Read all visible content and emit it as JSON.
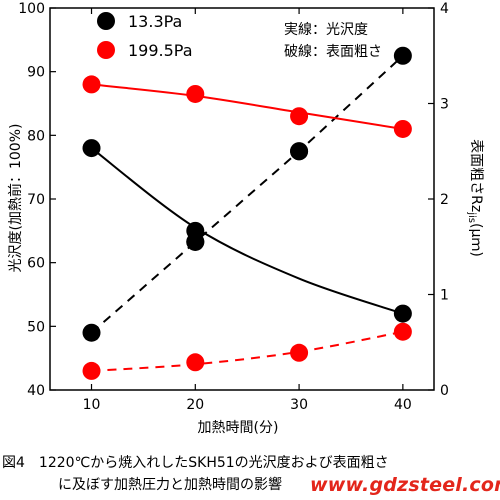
{
  "colors": {
    "series_black": "#000000",
    "series_red": "#ff0000",
    "watermark": "#e3261b"
  },
  "annotation": {
    "solid_line": "実線：光沢度",
    "dashed_line": "破線：表面粗さ"
  },
  "caption": {
    "line1": "図4　1220℃から焼入れしたSKH51の光沢度および表面粗さ",
    "line2": "に及ぼす加熱圧力と加熱時間の影響"
  },
  "watermark": "www.gdzsteel.com",
  "chart_data": {
    "type": "scatter",
    "xlabel": "加熱時間(分)",
    "ylabel_left": "光沢度(加熱前：100%)",
    "ylabel_right": "表面粗さRz",
    "ylabel_right_subscript": "jis",
    "ylabel_right_unit": "(μｍ)",
    "xlim": [
      6,
      43
    ],
    "xticks": [
      10,
      20,
      30,
      40
    ],
    "ylim_left": [
      40,
      100
    ],
    "yticks_left": [
      40,
      50,
      60,
      70,
      80,
      90,
      100
    ],
    "ylim_right": [
      0,
      4
    ],
    "yticks_right": [
      0,
      1,
      2,
      3,
      4
    ],
    "legend_position": "top-left",
    "series": [
      {
        "name": "13.3Pa",
        "color": "#000000",
        "gloss": {
          "x": [
            10,
            20,
            20,
            30,
            40
          ],
          "y": [
            78,
            65,
            63.3,
            77.5,
            52
          ]
        },
        "gloss_curve": [
          78,
          65.5,
          57.5,
          52
        ],
        "roughness": {
          "x": [
            10,
            20,
            30,
            40
          ],
          "y": [
            0.6,
            1.55,
            2.5,
            3.5
          ]
        }
      },
      {
        "name": "199.5Pa",
        "color": "#ff0000",
        "gloss": {
          "x": [
            10,
            20,
            30,
            40
          ],
          "y": [
            88,
            86.5,
            83,
            81
          ]
        },
        "gloss_curve": [
          88,
          86.2,
          83.6,
          81
        ],
        "roughness": {
          "x": [
            10,
            20,
            30,
            40
          ],
          "y": [
            0.2,
            0.29,
            0.39,
            0.61
          ]
        },
        "roughness_curve": [
          0.2,
          0.27,
          0.4,
          0.61
        ]
      }
    ]
  }
}
